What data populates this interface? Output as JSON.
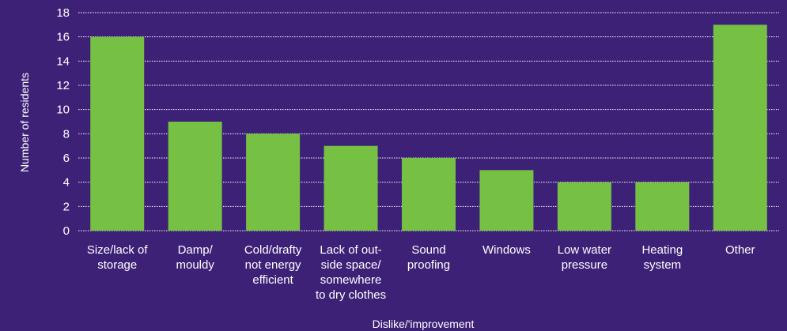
{
  "colors": {
    "background": "#3d2177",
    "bar": "#76c043",
    "grid": "#ffffff",
    "text": "#ffffff"
  },
  "chart_data": {
    "type": "bar",
    "title": "",
    "xlabel": "Dislike/'improvement",
    "ylabel": "Number of residents",
    "ylim": [
      0,
      18
    ],
    "yticks": [
      0,
      2,
      4,
      6,
      8,
      10,
      12,
      14,
      16,
      18
    ],
    "grid": true,
    "categories": [
      [
        "Size/lack of",
        "storage"
      ],
      [
        "Damp/",
        "mouldy"
      ],
      [
        "Cold/drafty",
        "not energy",
        "efficient"
      ],
      [
        "Lack of out-",
        "side space/",
        "somewhere",
        "to dry clothes"
      ],
      [
        "Sound",
        "proofing"
      ],
      [
        "Windows"
      ],
      [
        "Low water",
        "pressure"
      ],
      [
        "Heating",
        "system"
      ],
      [
        "Other"
      ]
    ],
    "values": [
      16,
      9,
      8,
      7,
      6,
      5,
      4,
      4,
      17
    ]
  }
}
